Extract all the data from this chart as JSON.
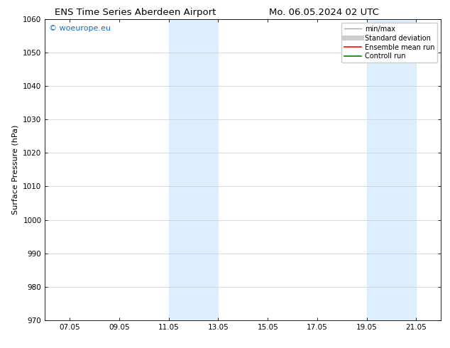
{
  "title_left": "ENS Time Series Aberdeen Airport",
  "title_right": "Mo. 06.05.2024 02 UTC",
  "ylabel": "Surface Pressure (hPa)",
  "ylim": [
    970,
    1060
  ],
  "yticks": [
    970,
    980,
    990,
    1000,
    1010,
    1020,
    1030,
    1040,
    1050,
    1060
  ],
  "xlim_start": 6.0,
  "xlim_end": 22.0,
  "xtick_labels": [
    "07.05",
    "09.05",
    "11.05",
    "13.05",
    "15.05",
    "17.05",
    "19.05",
    "21.05"
  ],
  "xtick_positions": [
    7,
    9,
    11,
    13,
    15,
    17,
    19,
    21
  ],
  "shaded_regions": [
    {
      "xmin": 11.0,
      "xmax": 13.0
    },
    {
      "xmin": 19.0,
      "xmax": 21.0
    }
  ],
  "shaded_color": "#ddeeff",
  "watermark_text": "© woeurope.eu",
  "watermark_color": "#1a6bbf",
  "legend_entries": [
    {
      "label": "min/max",
      "color": "#aaaaaa",
      "lw": 1.0,
      "style": "line"
    },
    {
      "label": "Standard deviation",
      "color": "#cccccc",
      "lw": 5,
      "style": "line"
    },
    {
      "label": "Ensemble mean run",
      "color": "red",
      "lw": 1.2,
      "style": "line"
    },
    {
      "label": "Controll run",
      "color": "green",
      "lw": 1.2,
      "style": "line"
    }
  ],
  "bg_color": "#ffffff",
  "grid_color": "#cccccc",
  "title_fontsize": 9.5,
  "label_fontsize": 8,
  "tick_fontsize": 7.5,
  "legend_fontsize": 7,
  "watermark_fontsize": 8
}
